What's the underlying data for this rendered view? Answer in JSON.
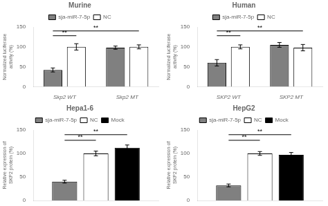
{
  "chart_data": [
    {
      "type": "bar",
      "title": "Murine",
      "categories": [
        "Skp2 WT",
        "Skp2 MT"
      ],
      "series": [
        {
          "name": "sja-miR-7-5p",
          "color": "#808080",
          "values": [
            42,
            98
          ],
          "errors": [
            5,
            4
          ]
        },
        {
          "name": "NC",
          "color": "#ffffff",
          "values": [
            100,
            100
          ],
          "errors": [
            8,
            5
          ]
        }
      ],
      "ylabel": "Normalized luciferase\nactivity (%)",
      "ylim": [
        0,
        150
      ],
      "yticks": [
        0,
        50,
        100,
        150
      ],
      "grid": false,
      "legend": "top",
      "annotations": [
        {
          "text": "**",
          "y": 128,
          "from": {
            "category": 0,
            "series": 0
          },
          "to": {
            "category": 0,
            "series": 1
          }
        },
        {
          "text": "**",
          "y": 140,
          "from": {
            "category": 0,
            "series": 0
          },
          "to": {
            "category": 1,
            "series": 1
          }
        }
      ]
    },
    {
      "type": "bar",
      "title": "Human",
      "categories": [
        "SKP2 WT",
        "SKP2 MT"
      ],
      "series": [
        {
          "name": "sja-miR-7-5p",
          "color": "#808080",
          "values": [
            60,
            105
          ],
          "errors": [
            8,
            6
          ]
        },
        {
          "name": "NC",
          "color": "#ffffff",
          "values": [
            100,
            98
          ],
          "errors": [
            5,
            8
          ]
        }
      ],
      "ylabel": "Normalized luciferase\nactivity (%)",
      "ylim": [
        0,
        150
      ],
      "yticks": [
        0,
        50,
        100,
        150
      ],
      "grid": false,
      "legend": "top",
      "annotations": [
        {
          "text": "**",
          "y": 128,
          "from": {
            "category": 0,
            "series": 0
          },
          "to": {
            "category": 0,
            "series": 1
          }
        },
        {
          "text": "**",
          "y": 140,
          "from": {
            "category": 0,
            "series": 0
          },
          "to": {
            "category": 1,
            "series": 1
          }
        }
      ]
    },
    {
      "type": "bar",
      "title": "Hepa1-6",
      "categories": [
        null
      ],
      "series": [
        {
          "name": "sja-miR-7-5p",
          "color": "#808080",
          "values": [
            40
          ],
          "errors": [
            3
          ]
        },
        {
          "name": "NC",
          "color": "#ffffff",
          "values": [
            100
          ],
          "errors": [
            5
          ]
        },
        {
          "name": "Mock",
          "color": "#000000",
          "values": [
            112
          ],
          "errors": [
            6
          ]
        }
      ],
      "ylabel": "Relative expression of\nSKP2 protein (%)",
      "ylim": [
        0,
        150
      ],
      "yticks": [
        0,
        50,
        100,
        150
      ],
      "grid": false,
      "legend": "top",
      "tick_labels": "y",
      "annotations": [
        {
          "text": "**",
          "y": 128,
          "from": {
            "category": 0,
            "series": 0
          },
          "to": {
            "category": 0,
            "series": 1
          }
        },
        {
          "text": "**",
          "y": 140,
          "from": {
            "category": 0,
            "series": 0
          },
          "to": {
            "category": 0,
            "series": 2
          }
        }
      ]
    },
    {
      "type": "bar",
      "title": "HepG2",
      "categories": [
        null
      ],
      "series": [
        {
          "name": "sja-miR-7-5p",
          "color": "#808080",
          "values": [
            32
          ],
          "errors": [
            3
          ]
        },
        {
          "name": "NC",
          "color": "#ffffff",
          "values": [
            100
          ],
          "errors": [
            4
          ]
        },
        {
          "name": "Mock",
          "color": "#000000",
          "values": [
            97
          ],
          "errors": [
            5
          ]
        }
      ],
      "ylabel": "Relative expression of\nSKP2 protein (%)",
      "ylim": [
        0,
        150
      ],
      "yticks": [
        0,
        50,
        100,
        150
      ],
      "grid": false,
      "legend": "top",
      "tick_labels": "y",
      "annotations": [
        {
          "text": "**",
          "y": 128,
          "from": {
            "category": 0,
            "series": 0
          },
          "to": {
            "category": 0,
            "series": 1
          }
        },
        {
          "text": "**",
          "y": 140,
          "from": {
            "category": 0,
            "series": 0
          },
          "to": {
            "category": 0,
            "series": 2
          }
        }
      ]
    }
  ]
}
